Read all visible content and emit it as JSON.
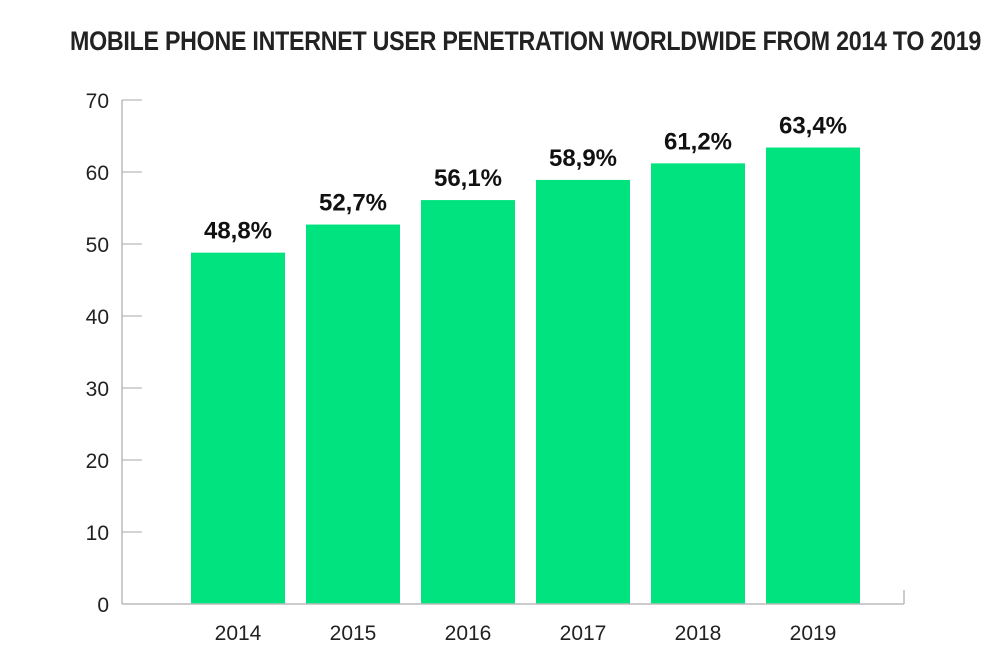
{
  "chart_data": {
    "type": "bar",
    "title": "MOBILE PHONE INTERNET USER PENETRATION WORLDWIDE FROM 2014 TO 2019",
    "xlabel": "",
    "ylabel": "",
    "categories": [
      "2014",
      "2015",
      "2016",
      "2017",
      "2018",
      "2019"
    ],
    "values": [
      48.8,
      52.7,
      56.1,
      58.9,
      61.2,
      63.4
    ],
    "data_labels": [
      "48,8%",
      "52,7%",
      "56,1%",
      "58,9%",
      "61,2%",
      "63,4%"
    ],
    "ylim": [
      0,
      70
    ],
    "yticks": [
      0,
      10,
      20,
      30,
      40,
      50,
      60,
      70
    ],
    "ytick_labels": [
      "0",
      "10",
      "20",
      "30",
      "40",
      "50",
      "60",
      "70"
    ],
    "grid": false,
    "legend": "none",
    "colors": {
      "bar": "#00e37e",
      "axis": "#bbbbbb",
      "text": "#222222"
    }
  }
}
